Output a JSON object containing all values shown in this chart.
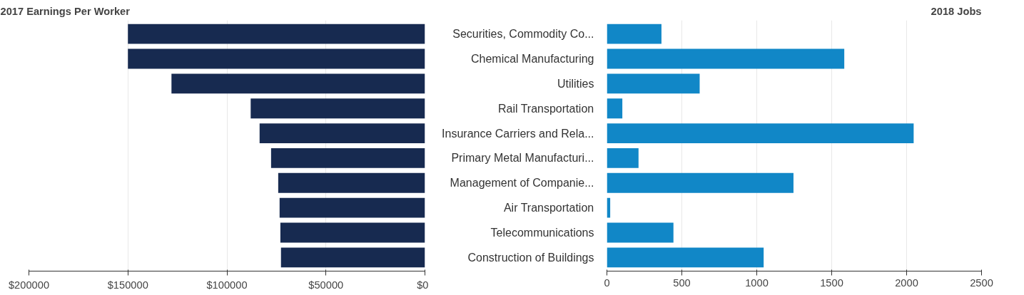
{
  "chart_data": [
    {
      "type": "bar",
      "orientation": "horizontal",
      "title": "2017 Earnings Per Worker",
      "tick_labels": "x",
      "grid": "x",
      "categories": [
        null,
        null,
        null,
        null,
        null,
        null,
        null,
        null,
        null,
        null
      ],
      "series": [
        {
          "color": "#172a50",
          "values": [
            150000,
            150000,
            128000,
            88000,
            83500,
            77700,
            74100,
            73400,
            73000,
            72700
          ]
        }
      ],
      "xlim": [
        200000,
        0
      ],
      "xticks": [
        {
          "value": 200000,
          "label": "$200000"
        },
        {
          "value": 150000,
          "label": "$150000"
        },
        {
          "value": 100000,
          "label": "$100000"
        },
        {
          "value": 50000,
          "label": "$50000"
        },
        {
          "value": 0,
          "label": "$0"
        }
      ]
    },
    {
      "type": "bar",
      "orientation": "horizontal",
      "title": "2018 Jobs",
      "grid": "x",
      "categories": [
        "Securities, Commodity Co...",
        "Chemical Manufacturing",
        "Utilities",
        "Rail Transportation",
        "Insurance Carriers and Rela...",
        "Primary Metal Manufacturi...",
        "Management of Companie...",
        "Air Transportation",
        "Telecommunications",
        "Construction of Buildings"
      ],
      "series": [
        {
          "color": "#1187c7",
          "values": [
            364,
            1584,
            619,
            103,
            2047,
            211,
            1245,
            22,
            444,
            1046
          ]
        }
      ],
      "xlim": [
        0,
        2500
      ],
      "xticks": [
        0,
        500,
        1000,
        1500,
        2000,
        2500
      ]
    }
  ]
}
